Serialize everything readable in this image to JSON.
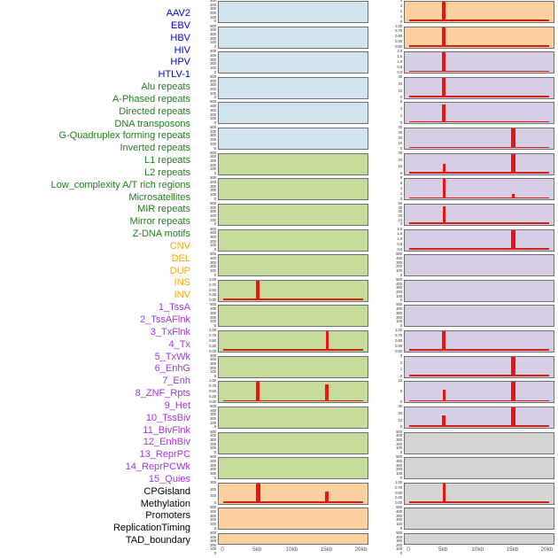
{
  "page": {
    "background": "#ffffff",
    "title": ""
  },
  "chart_data": {
    "type": "bar",
    "subtype": "small-multiple spike tracks (genomic feature density around integration site, 2 panel columns x 22 rows)",
    "title": "",
    "xlabel": "",
    "ylabel": "",
    "grid": false,
    "legend": false,
    "x_axis": {
      "tick_labels": [
        "0",
        "5kb",
        "10kb",
        "15kb",
        "20kb"
      ],
      "tick_kb": [
        0,
        5,
        10,
        15,
        20
      ],
      "range_kb": [
        0,
        20
      ]
    },
    "colors": {
      "label_blue": "#0101dd",
      "label_green": "#1f7d1f",
      "label_orange": "#ffa500",
      "label_purple": "#a132e8",
      "label_black": "#000000",
      "fill_blue": "#d2e5ee",
      "fill_green": "#c6dc9d",
      "fill_orange": "#fcd09f",
      "fill_purple": "#d7cee5",
      "fill_gray": "#d5d5d5",
      "panel_border": "#6f6f6f",
      "spike_red": "#ee1111",
      "baseline_red": "#cc2211",
      "ytick_text": "#3c3c3c",
      "xtick_text": "#5a5a5a"
    },
    "tracks": [
      {
        "label": "AAV2",
        "group": "virus",
        "color": "label_blue",
        "fill": "fill_blue",
        "column": "left",
        "row": 0,
        "y_ticks": [
          "500",
          "400",
          "300",
          "200",
          "100",
          "0"
        ],
        "spikes": []
      },
      {
        "label": "EBV",
        "group": "virus",
        "color": "label_blue",
        "fill": "fill_blue",
        "column": "left",
        "row": 1,
        "y_ticks": [
          "500",
          "400",
          "300",
          "200",
          "100",
          "0"
        ],
        "spikes": []
      },
      {
        "label": "HBV",
        "group": "virus",
        "color": "label_blue",
        "fill": "fill_blue",
        "column": "left",
        "row": 2,
        "y_ticks": [
          "500",
          "400",
          "300",
          "200",
          "100",
          "0"
        ],
        "spikes": []
      },
      {
        "label": "HIV",
        "group": "virus",
        "color": "label_blue",
        "fill": "fill_blue",
        "column": "left",
        "row": 3,
        "y_ticks": [
          "500",
          "400",
          "300",
          "200",
          "100",
          "0"
        ],
        "spikes": []
      },
      {
        "label": "HPV",
        "group": "virus",
        "color": "label_blue",
        "fill": "fill_blue",
        "column": "left",
        "row": 4,
        "y_ticks": [
          "500",
          "400",
          "300",
          "200",
          "100",
          "0"
        ],
        "spikes": []
      },
      {
        "label": "HTLV-1",
        "group": "virus",
        "color": "label_blue",
        "fill": "fill_blue",
        "column": "left",
        "row": 5,
        "y_ticks": [
          "500",
          "400",
          "300",
          "200",
          "100",
          "0"
        ],
        "spikes": []
      },
      {
        "label": "Alu repeats",
        "group": "repeat",
        "color": "label_green",
        "fill": "fill_green",
        "column": "left",
        "row": 6,
        "y_ticks": [
          "500",
          "400",
          "300",
          "200",
          "100",
          "0"
        ],
        "spikes": []
      },
      {
        "label": "A-Phased repeats",
        "group": "repeat",
        "color": "label_green",
        "fill": "fill_green",
        "column": "left",
        "row": 7,
        "y_ticks": [
          "500",
          "400",
          "300",
          "200",
          "100",
          "0"
        ],
        "spikes": []
      },
      {
        "label": "Directed repeats",
        "group": "repeat",
        "color": "label_green",
        "fill": "fill_green",
        "column": "left",
        "row": 8,
        "y_ticks": [
          "500",
          "400",
          "300",
          "200",
          "100",
          "0"
        ],
        "spikes": []
      },
      {
        "label": "DNA transposons",
        "group": "repeat",
        "color": "label_green",
        "fill": "fill_green",
        "column": "left",
        "row": 9,
        "y_ticks": [
          "500",
          "400",
          "300",
          "200",
          "100",
          "0"
        ],
        "spikes": []
      },
      {
        "label": "G-Quadruplex forming repeats",
        "group": "repeat",
        "color": "label_green",
        "fill": "fill_green",
        "column": "left",
        "row": 10,
        "y_ticks": [
          "500",
          "400",
          "300",
          "200",
          "100",
          "0"
        ],
        "spikes": []
      },
      {
        "label": "Inverted repeats",
        "group": "repeat",
        "color": "label_green",
        "fill": "fill_green",
        "column": "left",
        "row": 11,
        "y_ticks": [
          "1.00",
          "0.75",
          "0.50",
          "0.25",
          "0.00"
        ],
        "spikes": [
          {
            "kb": 5,
            "h": 1.0,
            "w": 4
          }
        ]
      },
      {
        "label": "L1 repeats",
        "group": "repeat",
        "color": "label_green",
        "fill": "fill_green",
        "column": "left",
        "row": 12,
        "y_ticks": [
          "500",
          "400",
          "300",
          "200",
          "100",
          "0"
        ],
        "spikes": []
      },
      {
        "label": "L2 repeats",
        "group": "repeat",
        "color": "label_green",
        "fill": "fill_green",
        "column": "left",
        "row": 13,
        "y_ticks": [
          "1.00",
          "0.75",
          "0.50",
          "0.25",
          "0.00"
        ],
        "spikes": [
          {
            "kb": 15,
            "h": 1.0,
            "w": 3
          }
        ]
      },
      {
        "label": "Low_complexity A/T rich regions",
        "group": "repeat",
        "color": "label_green",
        "fill": "fill_green",
        "column": "left",
        "row": 14,
        "y_ticks": [
          "500",
          "400",
          "300",
          "200",
          "100",
          "0"
        ],
        "spikes": []
      },
      {
        "label": "Microsatellites",
        "group": "repeat",
        "color": "label_green",
        "fill": "fill_green",
        "column": "left",
        "row": 15,
        "y_ticks": [
          "1.00",
          "0.75",
          "0.50",
          "0.25",
          "0.00"
        ],
        "spikes": [
          {
            "kb": 5,
            "h": 1.0,
            "w": 4
          },
          {
            "kb": 15,
            "h": 0.86,
            "w": 4
          }
        ]
      },
      {
        "label": "MIR repeats",
        "group": "repeat",
        "color": "label_green",
        "fill": "fill_green",
        "column": "left",
        "row": 16,
        "y_ticks": [
          "500",
          "400",
          "300",
          "200",
          "100",
          "0"
        ],
        "spikes": []
      },
      {
        "label": "Mirror repeats",
        "group": "repeat",
        "color": "label_green",
        "fill": "fill_green",
        "column": "left",
        "row": 17,
        "y_ticks": [
          "500",
          "400",
          "300",
          "200",
          "100",
          "0"
        ],
        "spikes": []
      },
      {
        "label": "Z-DNA motifs",
        "group": "repeat",
        "color": "label_green",
        "fill": "fill_green",
        "column": "left",
        "row": 18,
        "y_ticks": [
          "500",
          "400",
          "300",
          "200",
          "100",
          "0"
        ],
        "spikes": []
      },
      {
        "label": "CNV",
        "group": "structural-variant",
        "color": "label_orange",
        "fill": "fill_orange",
        "column": "left",
        "row": 19,
        "y_ticks": [
          "300",
          "200",
          "100",
          "0"
        ],
        "spikes": [
          {
            "kb": 5,
            "h": 1.0,
            "w": 5
          },
          {
            "kb": 15,
            "h": 0.58,
            "w": 4
          }
        ]
      },
      {
        "label": "DEL",
        "group": "structural-variant",
        "color": "label_orange",
        "fill": "fill_orange",
        "column": "left",
        "row": 20,
        "y_ticks": [
          "500",
          "400",
          "300",
          "200",
          "100",
          "0"
        ],
        "spikes": []
      },
      {
        "label": "DUP",
        "group": "structural-variant",
        "color": "label_orange",
        "fill": "fill_orange",
        "column": "left",
        "row": 21,
        "y_ticks": [
          "500",
          "400",
          "300",
          "200",
          "100",
          "0"
        ],
        "spikes": []
      },
      {
        "label": "INS",
        "group": "structural-variant",
        "color": "label_orange",
        "fill": "fill_orange",
        "column": "right",
        "row": 0,
        "y_ticks": [
          "4",
          "3",
          "2",
          "1",
          "0"
        ],
        "spikes": [
          {
            "kb": 5,
            "h": 1.0,
            "w": 4
          }
        ]
      },
      {
        "label": "INV",
        "group": "structural-variant",
        "color": "label_orange",
        "fill": "fill_orange",
        "column": "right",
        "row": 1,
        "y_ticks": [
          "1.00",
          "0.75",
          "0.50",
          "0.25",
          "0.00"
        ],
        "spikes": [
          {
            "kb": 5,
            "h": 1.0,
            "w": 4
          }
        ]
      },
      {
        "label": "1_TssA",
        "group": "chromatin-state",
        "color": "label_purple",
        "fill": "fill_purple",
        "column": "right",
        "row": 2,
        "y_ticks": [
          "2.0",
          "1.5",
          "1.0",
          "0.5",
          "0.0"
        ],
        "spikes": [
          {
            "kb": 5,
            "h": 1.0,
            "w": 4
          }
        ]
      },
      {
        "label": "2_TssAFlnk",
        "group": "chromatin-state",
        "color": "label_purple",
        "fill": "fill_purple",
        "column": "right",
        "row": 3,
        "y_ticks": [
          "30",
          "20",
          "10",
          "0"
        ],
        "spikes": [
          {
            "kb": 5,
            "h": 1.0,
            "w": 4
          }
        ]
      },
      {
        "label": "3_TxFlnk",
        "group": "chromatin-state",
        "color": "label_purple",
        "fill": "fill_purple",
        "column": "right",
        "row": 4,
        "y_ticks": [
          "6",
          "4",
          "2",
          "0"
        ],
        "spikes": [
          {
            "kb": 5,
            "h": 0.93,
            "w": 4
          }
        ]
      },
      {
        "label": "4_Tx",
        "group": "chromatin-state",
        "color": "label_purple",
        "fill": "fill_purple",
        "column": "right",
        "row": 5,
        "y_ticks": [
          "40",
          "30",
          "20",
          "10",
          "0"
        ],
        "spikes": [
          {
            "kb": 15,
            "h": 1.0,
            "w": 5
          }
        ]
      },
      {
        "label": "5_TxWk",
        "group": "chromatin-state",
        "color": "label_purple",
        "fill": "fill_purple",
        "column": "right",
        "row": 6,
        "y_ticks": [
          "30",
          "20",
          "10",
          "0"
        ],
        "spikes": [
          {
            "kb": 5,
            "h": 0.5,
            "w": 3
          },
          {
            "kb": 15,
            "h": 1.0,
            "w": 5
          }
        ]
      },
      {
        "label": "6_EnhG",
        "group": "chromatin-state",
        "color": "label_purple",
        "fill": "fill_purple",
        "column": "right",
        "row": 7,
        "y_ticks": [
          "8",
          "6",
          "4",
          "2",
          "0"
        ],
        "spikes": [
          {
            "kb": 5,
            "h": 1.0,
            "w": 3
          },
          {
            "kb": 15,
            "h": 0.25,
            "w": 3
          }
        ]
      },
      {
        "label": "7_Enh",
        "group": "chromatin-state",
        "color": "label_purple",
        "fill": "fill_purple",
        "column": "right",
        "row": 8,
        "y_ticks": [
          "50",
          "40",
          "30",
          "20",
          "10",
          "0"
        ],
        "spikes": [
          {
            "kb": 5,
            "h": 0.92,
            "w": 3
          },
          {
            "kb": 15,
            "h": 0.07,
            "w": 3
          }
        ]
      },
      {
        "label": "8_ZNF_Rpts",
        "group": "chromatin-state",
        "color": "label_purple",
        "fill": "fill_purple",
        "column": "right",
        "row": 9,
        "y_ticks": [
          "2.0",
          "1.5",
          "1.0",
          "0.5",
          "0.0"
        ],
        "spikes": [
          {
            "kb": 15,
            "h": 1.0,
            "w": 5
          }
        ]
      },
      {
        "label": "9_Het",
        "group": "chromatin-state",
        "color": "label_purple",
        "fill": "fill_purple",
        "column": "right",
        "row": 10,
        "y_ticks": [
          "500",
          "400",
          "300",
          "200",
          "100",
          "0"
        ],
        "spikes": []
      },
      {
        "label": "10_TssBiv",
        "group": "chromatin-state",
        "color": "label_purple",
        "fill": "fill_purple",
        "column": "right",
        "row": 11,
        "y_ticks": [
          "500",
          "400",
          "300",
          "200",
          "100",
          "0"
        ],
        "spikes": []
      },
      {
        "label": "11_BivFlnk",
        "group": "chromatin-state",
        "color": "label_purple",
        "fill": "fill_purple",
        "column": "right",
        "row": 12,
        "y_ticks": [
          "500",
          "400",
          "300",
          "200",
          "100",
          "0"
        ],
        "spikes": []
      },
      {
        "label": "12_EnhBiv",
        "group": "chromatin-state",
        "color": "label_purple",
        "fill": "fill_purple",
        "column": "right",
        "row": 13,
        "y_ticks": [
          "1.00",
          "0.75",
          "0.50",
          "0.25",
          "0.00"
        ],
        "spikes": [
          {
            "kb": 5,
            "h": 1.0,
            "w": 4
          }
        ]
      },
      {
        "label": "13_ReprPC",
        "group": "chromatin-state",
        "color": "label_purple",
        "fill": "fill_purple",
        "column": "right",
        "row": 14,
        "y_ticks": [
          "3",
          "2",
          "1",
          "0"
        ],
        "spikes": [
          {
            "kb": 15,
            "h": 1.0,
            "w": 5
          }
        ]
      },
      {
        "label": "14_ReprPCWk",
        "group": "chromatin-state",
        "color": "label_purple",
        "fill": "fill_purple",
        "column": "right",
        "row": 15,
        "y_ticks": [
          "10",
          "5",
          "0"
        ],
        "spikes": [
          {
            "kb": 5,
            "h": 0.6,
            "w": 3
          },
          {
            "kb": 15,
            "h": 1.0,
            "w": 5
          }
        ]
      },
      {
        "label": "15_Quies",
        "group": "chromatin-state",
        "color": "label_purple",
        "fill": "fill_purple",
        "column": "right",
        "row": 16,
        "y_ticks": [
          "30",
          "20",
          "10",
          "0"
        ],
        "spikes": [
          {
            "kb": 5,
            "h": 0.6,
            "w": 4
          },
          {
            "kb": 15,
            "h": 1.0,
            "w": 5
          }
        ]
      },
      {
        "label": "CPGisland",
        "group": "feature",
        "color": "label_black",
        "fill": "fill_gray",
        "column": "right",
        "row": 17,
        "y_ticks": [
          "500",
          "400",
          "300",
          "200",
          "100",
          "0"
        ],
        "spikes": []
      },
      {
        "label": "Methylation",
        "group": "feature",
        "color": "label_black",
        "fill": "fill_gray",
        "column": "right",
        "row": 18,
        "y_ticks": [
          "500",
          "400",
          "300",
          "200",
          "100",
          "0"
        ],
        "spikes": []
      },
      {
        "label": "Promoters",
        "group": "feature",
        "color": "label_black",
        "fill": "fill_gray",
        "column": "right",
        "row": 19,
        "y_ticks": [
          "1.00",
          "0.75",
          "0.50",
          "0.25",
          "0.00"
        ],
        "spikes": [
          {
            "kb": 5,
            "h": 1.0,
            "w": 3
          }
        ]
      },
      {
        "label": "ReplicationTiming",
        "group": "feature",
        "color": "label_black",
        "fill": "fill_gray",
        "column": "right",
        "row": 20,
        "y_ticks": [
          "500",
          "400",
          "300",
          "200",
          "100",
          "0"
        ],
        "spikes": []
      },
      {
        "label": "TAD_boundary",
        "group": "feature",
        "color": "label_black",
        "fill": "fill_gray",
        "column": "right",
        "row": 21,
        "y_ticks": [
          "500",
          "400",
          "300",
          "200",
          "100",
          "0"
        ],
        "spikes": []
      }
    ]
  }
}
